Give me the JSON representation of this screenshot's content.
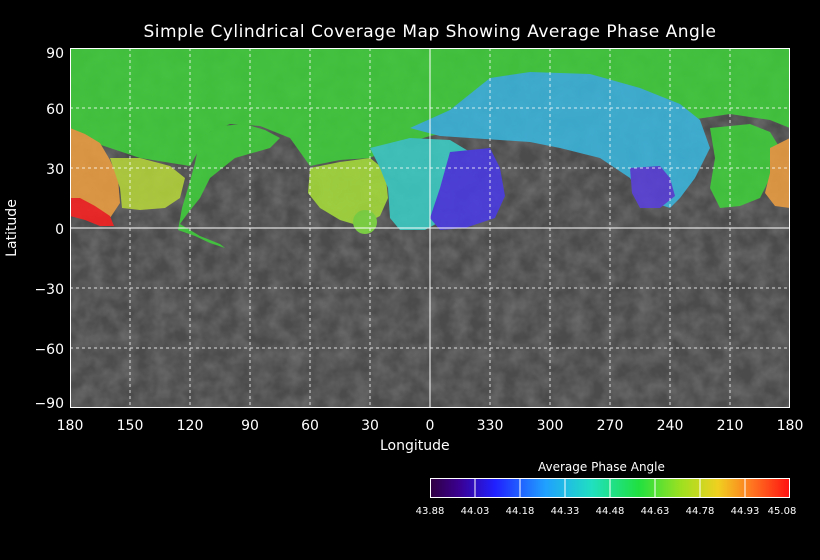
{
  "map": {
    "title": "Simple Cylindrical Coverage Map Showing Average Phase Angle",
    "xlabel": "Longitude",
    "ylabel": "Latitude",
    "lat_ticks": [
      "90",
      "60",
      "30",
      "0",
      "−30",
      "−60",
      "−90"
    ],
    "lon_ticks": [
      "180",
      "150",
      "120",
      "90",
      "60",
      "30",
      "0",
      "330",
      "300",
      "270",
      "240",
      "210",
      "180"
    ],
    "colors": {
      "background": "#000000",
      "surface": "#4a4a4a",
      "grid": "#ffffff"
    }
  },
  "colorbar": {
    "title": "Average Phase Angle",
    "ticks": [
      "43.88",
      "44.03",
      "44.18",
      "44.33",
      "44.48",
      "44.63",
      "44.78",
      "44.93",
      "45.08"
    ],
    "range": [
      43.88,
      45.08
    ]
  }
}
